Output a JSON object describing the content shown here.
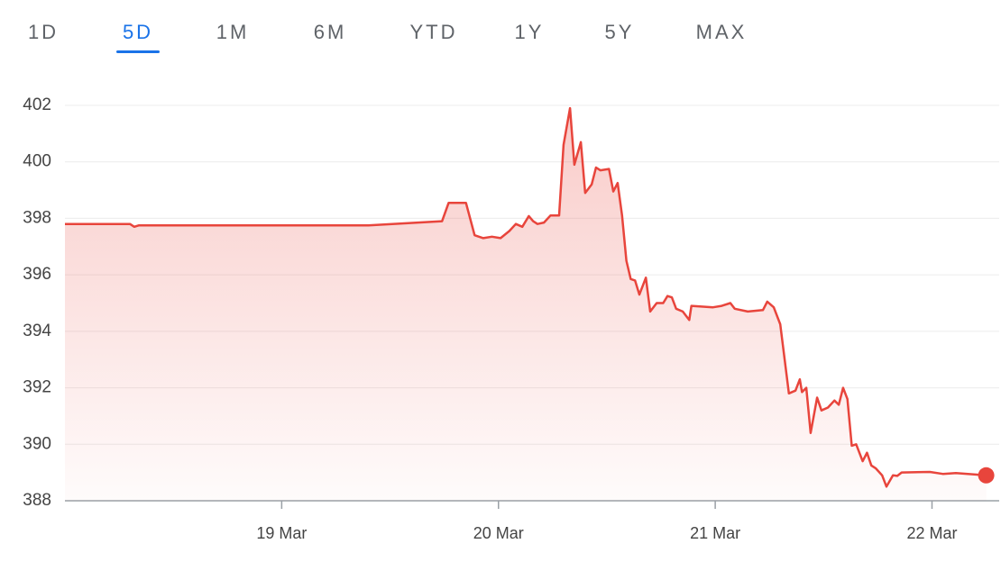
{
  "tabs": [
    "1D",
    "5D",
    "1M",
    "6M",
    "YTD",
    "1Y",
    "5Y",
    "MAX"
  ],
  "selected_tab": 1,
  "chart_data": {
    "type": "line",
    "x": [
      18.0,
      18.3,
      18.32,
      18.34,
      18.53,
      19.4,
      19.74,
      19.77,
      19.85,
      19.89,
      19.93,
      19.97,
      20.01,
      20.05,
      20.08,
      20.11,
      20.14,
      20.16,
      20.18,
      20.21,
      20.24,
      20.28,
      20.3,
      20.33,
      20.35,
      20.38,
      20.4,
      20.43,
      20.45,
      20.47,
      20.51,
      20.53,
      20.55,
      20.57,
      20.59,
      20.61,
      20.63,
      20.65,
      20.68,
      20.7,
      20.73,
      20.76,
      20.78,
      20.8,
      20.82,
      20.85,
      20.88,
      20.89,
      20.99,
      21.03,
      21.07,
      21.09,
      21.15,
      21.22,
      21.24,
      21.27,
      21.3,
      21.34,
      21.37,
      21.39,
      21.4,
      21.42,
      21.44,
      21.47,
      21.49,
      21.52,
      21.55,
      21.57,
      21.59,
      21.61,
      21.63,
      21.65,
      21.68,
      21.7,
      21.72,
      21.74,
      21.77,
      21.79,
      21.82,
      21.84,
      21.86,
      21.99,
      22.05,
      22.11,
      22.25
    ],
    "series": [
      {
        "color": "#e8453c",
        "values": [
          397.8,
          397.8,
          397.7,
          397.75,
          397.75,
          397.75,
          397.9,
          398.55,
          398.55,
          397.4,
          397.3,
          397.35,
          397.3,
          397.55,
          397.8,
          397.7,
          398.08,
          397.9,
          397.8,
          397.85,
          398.1,
          398.1,
          400.6,
          401.9,
          399.9,
          400.7,
          398.9,
          399.2,
          399.8,
          399.7,
          399.75,
          398.95,
          399.25,
          398.1,
          396.5,
          395.85,
          395.8,
          395.3,
          395.9,
          394.7,
          395.0,
          395.0,
          395.25,
          395.2,
          394.8,
          394.7,
          394.4,
          394.9,
          394.85,
          394.9,
          395.0,
          394.8,
          394.7,
          394.75,
          395.05,
          394.85,
          394.25,
          391.8,
          391.9,
          392.3,
          391.85,
          392.0,
          390.4,
          391.65,
          391.2,
          391.3,
          391.55,
          391.4,
          392.0,
          391.6,
          389.95,
          390.0,
          389.4,
          389.7,
          389.25,
          389.15,
          388.9,
          388.5,
          388.9,
          388.88,
          389.0,
          389.02,
          388.95,
          388.98,
          388.9
        ]
      }
    ],
    "xlim": [
      18,
      22.31
    ],
    "ylim": [
      388,
      402
    ],
    "yticks": [
      388,
      390,
      392,
      394,
      396,
      398,
      400,
      402
    ],
    "xticks": [
      {
        "value": 19,
        "label": "19 Mar"
      },
      {
        "value": 20,
        "label": "20 Mar"
      },
      {
        "value": 21,
        "label": "21 Mar"
      },
      {
        "value": 22,
        "label": "22 Mar"
      }
    ],
    "grid": true,
    "area": true,
    "end_marker": true
  }
}
